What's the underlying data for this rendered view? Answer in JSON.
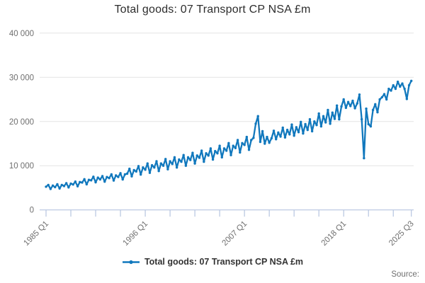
{
  "title": "Total goods: 07 Transport CP NSA £m",
  "source_label": "Source:",
  "colors": {
    "line": "#1178bd",
    "axis": "#b6c5e0",
    "grid": "#e3e3e3",
    "tick_text": "#6f6f6f",
    "title_text": "#2d2d2d",
    "legend_text": "#333333",
    "background": "#ffffff"
  },
  "chart_data": {
    "type": "line",
    "title": "Total goods: 07 Transport CP NSA £m",
    "legend": {
      "label": "Total goods: 07 Transport CP NSA £m",
      "position": "bottom"
    },
    "frequency": "quarterly",
    "x_start": "1985 Q1",
    "x_end": "2025 Q3",
    "x_tick_labels": [
      "1985 Q1",
      "1996 Q1",
      "2007 Q1",
      "2018 Q1",
      "2025 Q3"
    ],
    "x_tick_indices": [
      0,
      44,
      88,
      132,
      162
    ],
    "minor_tick_step": 11,
    "y_tick_labels": [
      "0",
      "10 000",
      "20 000",
      "30 000",
      "40 000"
    ],
    "y_tick_values": [
      0,
      10000,
      20000,
      30000,
      40000
    ],
    "ylim": [
      0,
      40000
    ],
    "grid": "horizontal",
    "marker": "dot",
    "values": [
      5250,
      5650,
      4750,
      5500,
      5150,
      5800,
      4850,
      5650,
      5400,
      6050,
      5100,
      5950,
      5750,
      6400,
      5350,
      6300,
      6200,
      6950,
      5800,
      6800,
      6700,
      7500,
      6250,
      7300,
      6900,
      7650,
      6400,
      7450,
      7200,
      8050,
      6650,
      7800,
      7450,
      8300,
      6900,
      8050,
      8200,
      9300,
      7600,
      9000,
      8700,
      9900,
      8000,
      9600,
      9100,
      10500,
      8400,
      10100,
      9600,
      11000,
      8800,
      10500,
      10000,
      11500,
      9200,
      11000,
      10400,
      11900,
      9600,
      11400,
      10900,
      12400,
      10000,
      11900,
      11300,
      12900,
      10500,
      12300,
      11800,
      13400,
      10900,
      12800,
      12300,
      13900,
      11400,
      13300,
      12800,
      14500,
      11900,
      13900,
      13400,
      15100,
      12400,
      14500,
      14000,
      15800,
      13000,
      15100,
      14700,
      16500,
      13600,
      15800,
      16300,
      19500,
      21200,
      15400,
      17800,
      15000,
      16500,
      15200,
      16200,
      17900,
      16000,
      17500,
      16600,
      18600,
      16400,
      18100,
      17100,
      19300,
      16800,
      18700,
      17600,
      19900,
      17300,
      19400,
      18100,
      20500,
      17800,
      20000,
      19200,
      21800,
      18900,
      21200,
      19800,
      22600,
      19500,
      22000,
      20600,
      23600,
      20500,
      23400,
      25000,
      23100,
      24400,
      23500,
      24700,
      23000,
      24100,
      26100,
      20500,
      11700,
      22900,
      19400,
      18900,
      22600,
      23900,
      22100,
      25000,
      25500,
      26200,
      25000,
      27400,
      27000,
      28200,
      27400,
      29000,
      27900,
      28600,
      27400,
      25100,
      28200,
      29200
    ]
  }
}
